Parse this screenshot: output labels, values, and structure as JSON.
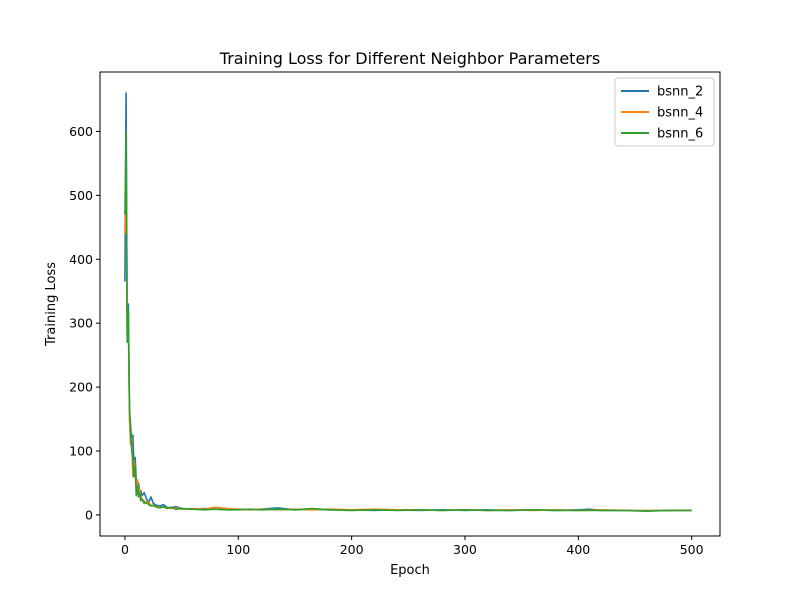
{
  "chart_data": {
    "type": "line",
    "title": "Training Loss for Different Neighbor Parameters",
    "xlabel": "Epoch",
    "ylabel": "Training Loss",
    "xlim": [
      -22,
      525
    ],
    "ylim": [
      -33,
      693
    ],
    "xticks": [
      0,
      100,
      200,
      300,
      400,
      500
    ],
    "yticks": [
      0,
      100,
      200,
      300,
      400,
      500,
      600
    ],
    "grid": false,
    "legend_position": "top-right",
    "series": [
      {
        "name": "bsnn_2",
        "color": "#1f77b4",
        "x": [
          0,
          1,
          2,
          3,
          4,
          5,
          6,
          7,
          8,
          9,
          10,
          11,
          12,
          13,
          14,
          15,
          17,
          19,
          21,
          23,
          25,
          28,
          31,
          34,
          37,
          40,
          45,
          50,
          60,
          70,
          80,
          90,
          100,
          110,
          120,
          135,
          150,
          165,
          180,
          200,
          220,
          240,
          260,
          280,
          300,
          320,
          340,
          360,
          380,
          400,
          410,
          420,
          440,
          460,
          480,
          500
        ],
        "y": [
          365,
          660,
          300,
          330,
          160,
          140,
          110,
          125,
          75,
          90,
          55,
          40,
          50,
          35,
          38,
          30,
          35,
          25,
          20,
          28,
          18,
          15,
          14,
          16,
          12,
          11,
          13,
          10,
          9,
          10,
          9,
          8,
          9,
          8,
          9,
          11,
          8,
          9,
          8,
          8,
          7,
          8,
          7,
          8,
          7,
          8,
          7,
          8,
          7,
          8,
          9,
          7,
          7,
          6,
          7,
          7
        ]
      },
      {
        "name": "bsnn_4",
        "color": "#ff7f0e",
        "x": [
          0,
          1,
          2,
          3,
          4,
          5,
          6,
          7,
          8,
          9,
          10,
          11,
          12,
          13,
          14,
          15,
          17,
          19,
          21,
          23,
          25,
          28,
          31,
          34,
          37,
          40,
          45,
          50,
          60,
          70,
          80,
          90,
          100,
          110,
          120,
          135,
          150,
          165,
          180,
          200,
          220,
          240,
          260,
          280,
          300,
          320,
          340,
          360,
          380,
          400,
          420,
          440,
          460,
          480,
          500
        ],
        "y": [
          440,
          560,
          280,
          310,
          150,
          110,
          120,
          60,
          85,
          70,
          45,
          55,
          35,
          40,
          30,
          25,
          22,
          18,
          20,
          15,
          14,
          13,
          12,
          12,
          11,
          10,
          11,
          9,
          10,
          9,
          12,
          10,
          9,
          8,
          9,
          8,
          9,
          8,
          9,
          8,
          9,
          8,
          8,
          7,
          8,
          7,
          8,
          7,
          8,
          7,
          8,
          7,
          7,
          7,
          7
        ]
      },
      {
        "name": "bsnn_6",
        "color": "#2ca02c",
        "x": [
          0,
          1,
          2,
          3,
          4,
          5,
          6,
          7,
          8,
          9,
          10,
          11,
          12,
          13,
          14,
          15,
          17,
          19,
          21,
          23,
          25,
          28,
          31,
          34,
          37,
          40,
          45,
          50,
          60,
          70,
          80,
          90,
          100,
          110,
          120,
          135,
          150,
          165,
          180,
          200,
          220,
          240,
          260,
          280,
          300,
          320,
          340,
          360,
          380,
          400,
          420,
          440,
          460,
          480,
          500
        ],
        "y": [
          470,
          600,
          270,
          320,
          170,
          130,
          100,
          90,
          60,
          75,
          30,
          45,
          28,
          35,
          22,
          25,
          18,
          20,
          16,
          14,
          15,
          12,
          11,
          13,
          10,
          12,
          9,
          10,
          9,
          8,
          9,
          8,
          8,
          9,
          8,
          9,
          8,
          10,
          8,
          7,
          8,
          7,
          8,
          7,
          8,
          7,
          7,
          8,
          7,
          7,
          7,
          7,
          6,
          7,
          7
        ]
      }
    ]
  }
}
